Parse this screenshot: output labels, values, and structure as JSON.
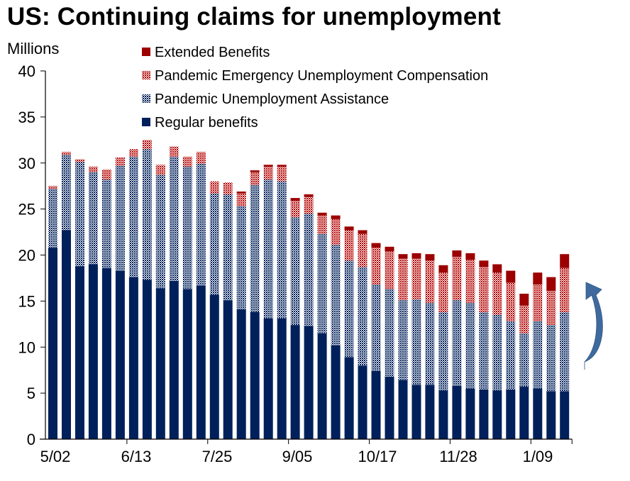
{
  "chart_data": {
    "type": "bar",
    "stacked": true,
    "title": "US: Continuing claims for unemployment",
    "ylabel": "Millions",
    "xlabel": "",
    "ylim": [
      0,
      40
    ],
    "yticks": [
      0,
      5,
      10,
      15,
      20,
      25,
      30,
      35,
      40
    ],
    "xtick_labels": [
      "5/02",
      "6/13",
      "7/25",
      "9/05",
      "10/17",
      "11/28",
      "1/09"
    ],
    "legend_position": "top",
    "grid": false,
    "bar_count": 39,
    "series": [
      {
        "name": "Regular benefits",
        "color": "#00205B",
        "pattern": "solid",
        "values": [
          20.8,
          22.7,
          18.8,
          19.0,
          18.6,
          18.3,
          17.6,
          17.3,
          16.4,
          17.2,
          16.3,
          16.7,
          15.7,
          15.1,
          14.1,
          13.8,
          13.1,
          13.1,
          12.4,
          12.3,
          11.5,
          10.2,
          8.9,
          8.0,
          7.4,
          6.8,
          6.4,
          5.9,
          5.9,
          5.3,
          5.8,
          5.5,
          5.4,
          5.3,
          5.4,
          5.7,
          5.5,
          5.2,
          5.2
        ]
      },
      {
        "name": "Pandemic Unemployment Assistance",
        "color": "#00205B",
        "pattern": "checker",
        "values": [
          6.4,
          8.2,
          11.3,
          10.0,
          9.6,
          11.4,
          13.1,
          14.2,
          12.3,
          13.5,
          13.3,
          13.2,
          11.0,
          11.5,
          11.2,
          13.8,
          15.1,
          14.9,
          11.7,
          12.2,
          10.8,
          10.9,
          10.5,
          10.7,
          9.4,
          9.5,
          8.7,
          9.3,
          8.9,
          8.5,
          9.3,
          9.3,
          8.4,
          8.2,
          7.4,
          5.8,
          7.3,
          7.2,
          8.6
        ]
      },
      {
        "name": "Pandemic Emergency Unemployment Compensation",
        "color": "#B30000",
        "pattern": "checker",
        "values": [
          0.3,
          0.3,
          0.3,
          0.6,
          1.1,
          0.9,
          0.8,
          1.0,
          1.1,
          1.1,
          1.1,
          1.3,
          1.3,
          1.3,
          1.4,
          1.4,
          1.4,
          1.6,
          1.8,
          1.8,
          2.0,
          2.8,
          3.3,
          3.6,
          4.0,
          4.1,
          4.5,
          4.4,
          4.6,
          4.3,
          4.7,
          4.7,
          4.9,
          4.6,
          4.2,
          3.0,
          4.0,
          3.7,
          4.8
        ]
      },
      {
        "name": "Extended Benefits",
        "color": "#9C0000",
        "pattern": "solid",
        "values": [
          0,
          0,
          0,
          0,
          0,
          0,
          0,
          0,
          0,
          0,
          0,
          0,
          0,
          0,
          0.2,
          0.2,
          0.2,
          0.2,
          0.3,
          0.3,
          0.3,
          0.4,
          0.4,
          0.4,
          0.5,
          0.5,
          0.5,
          0.6,
          0.7,
          0.8,
          0.7,
          0.7,
          0.7,
          0.9,
          1.3,
          1.3,
          1.3,
          1.5,
          1.5
        ]
      }
    ],
    "legend_order": [
      "Extended Benefits",
      "Pandemic Emergency Unemployment Compensation",
      "Pandemic Unemployment Assistance",
      "Regular benefits"
    ],
    "annotation": "curved-arrow-up"
  },
  "colors": {
    "navy": "#00205B",
    "red": "#B30000",
    "dark_red": "#9C0000",
    "arrow": "#3F6A9E"
  }
}
